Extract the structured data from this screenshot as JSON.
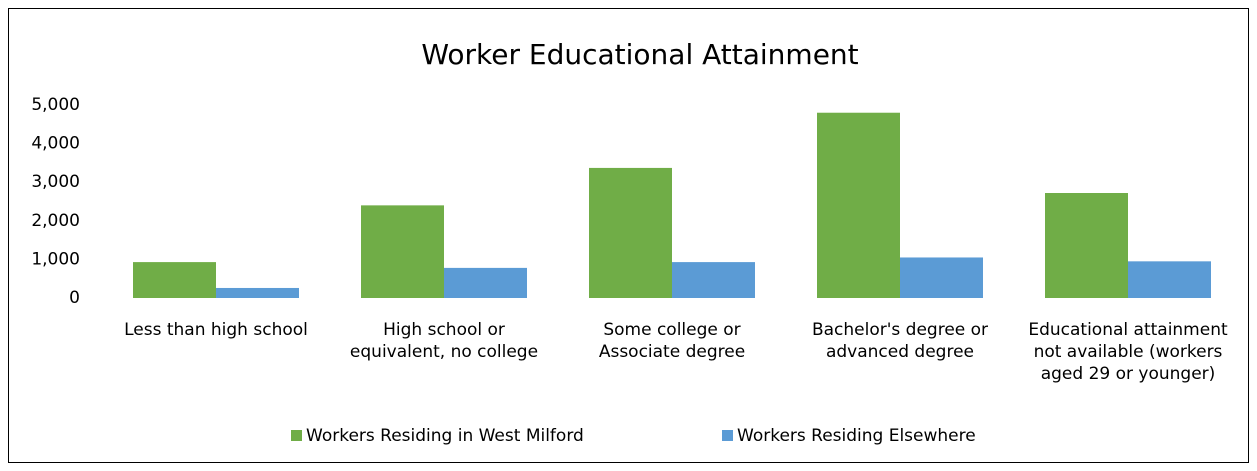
{
  "chart_data": {
    "type": "bar",
    "title": "Worker Educational Attainment",
    "categories": [
      "Less than high school",
      "High school or equivalent, no college",
      "Some college or Associate degree",
      "Bachelor's degree or advanced degree",
      "Educational attainment not available (workers aged 29 or younger)"
    ],
    "series": [
      {
        "name": "Workers Residing in West Milford",
        "color": "#70ad47",
        "values": [
          930,
          2400,
          3370,
          4800,
          2720
        ]
      },
      {
        "name": "Workers Residing Elsewhere",
        "color": "#5b9bd5",
        "values": [
          260,
          780,
          930,
          1050,
          950
        ]
      }
    ],
    "ylim": [
      0,
      5000
    ],
    "yticks": [
      0,
      {
        "value": 1000,
        "label": "1,000"
      },
      {
        "value": 2000,
        "label": "2,000"
      },
      {
        "value": 3000,
        "label": "3,000"
      },
      {
        "value": 4000,
        "label": "4,000"
      },
      {
        "value": 5000,
        "label": "5,000"
      }
    ],
    "grid": false,
    "legend": "bottom"
  }
}
